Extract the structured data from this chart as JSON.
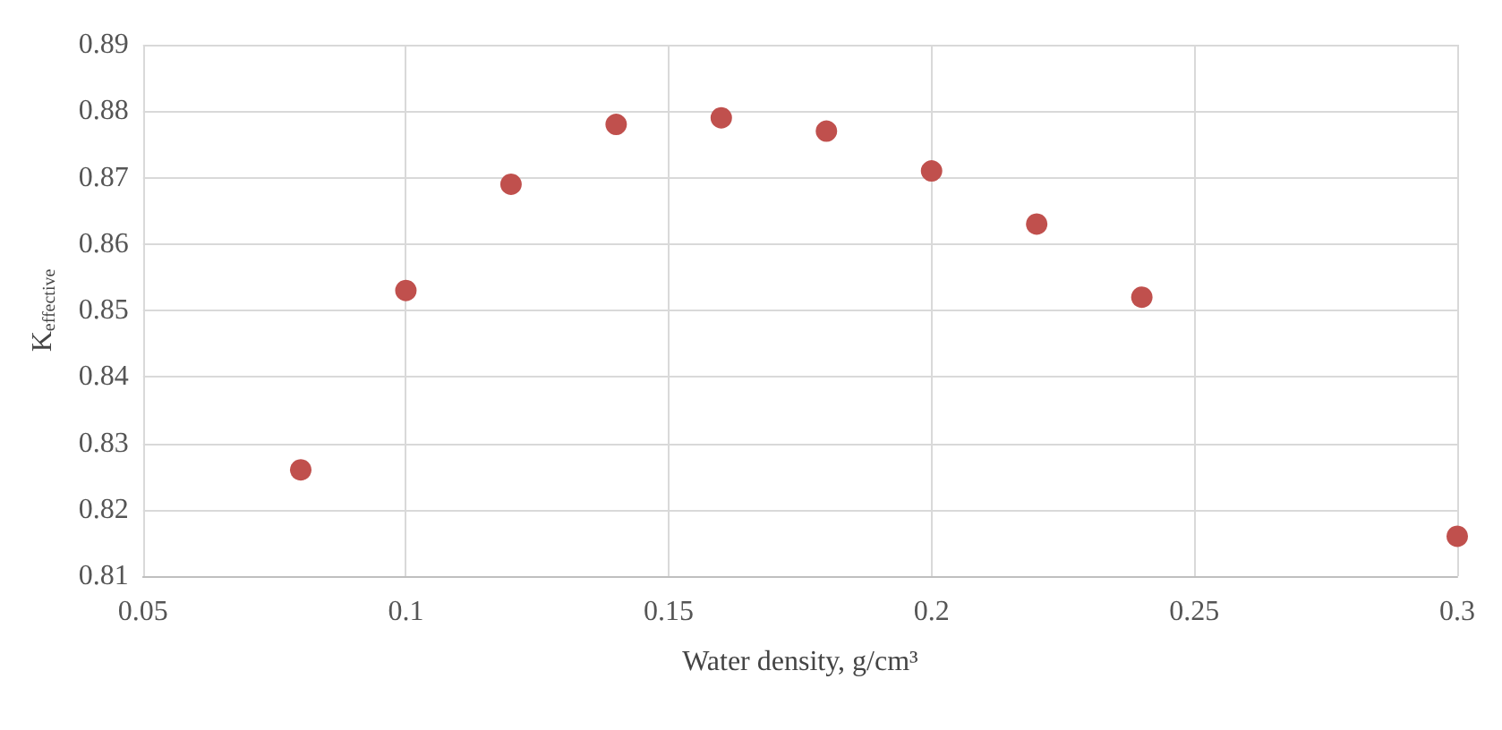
{
  "chart_data": {
    "type": "scatter",
    "xlabel": "Water density, g/cm³",
    "ylabel": "K$_{effective}$",
    "x": [
      0.08,
      0.1,
      0.12,
      0.14,
      0.16,
      0.18,
      0.2,
      0.22,
      0.24,
      0.3
    ],
    "series": [
      {
        "color": "#c0504d",
        "values": [
          0.826,
          0.853,
          0.869,
          0.878,
          0.879,
          0.877,
          0.871,
          0.863,
          0.852,
          0.816
        ]
      }
    ],
    "xlim": [
      0.05,
      0.3
    ],
    "xticks": [
      0.05,
      0.1,
      0.15,
      0.2,
      0.25,
      0.3
    ],
    "ylim": [
      0.81,
      0.89
    ],
    "yticks": [
      0.81,
      0.82,
      0.83,
      0.84,
      0.85,
      0.86,
      0.87,
      0.88,
      0.89
    ],
    "grid": true,
    "marker": "circle"
  }
}
